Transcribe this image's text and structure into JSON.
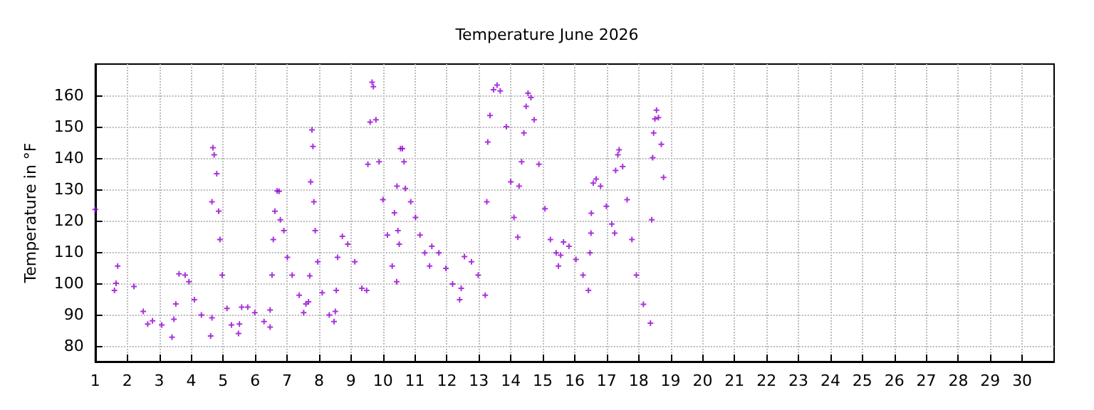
{
  "chart_data": {
    "type": "scatter",
    "title": "Temperature June 2026",
    "ylabel": "Temperature in °F",
    "xlim": [
      1,
      31
    ],
    "xticks": [
      1,
      2,
      3,
      4,
      5,
      6,
      7,
      8,
      9,
      10,
      11,
      12,
      13,
      14,
      15,
      16,
      17,
      18,
      19,
      20,
      21,
      22,
      23,
      24,
      25,
      26,
      27,
      28,
      29,
      30
    ],
    "ylim": [
      75,
      170
    ],
    "yticks": [
      80,
      90,
      100,
      110,
      120,
      130,
      140,
      150,
      160
    ],
    "grid": true,
    "marker": "cross",
    "series": [
      {
        "color": "#9400d3",
        "x": [
          1.0,
          1.6,
          1.65,
          1.7,
          2.21,
          2.5,
          2.64,
          2.79,
          3.08,
          3.4,
          3.46,
          3.52,
          3.62,
          3.81,
          3.93,
          4.1,
          4.32,
          4.61,
          4.65,
          4.65,
          4.68,
          4.72,
          4.8,
          4.86,
          4.9,
          4.97,
          5.12,
          5.26,
          5.48,
          5.51,
          5.58,
          5.77,
          5.99,
          6.28,
          6.47,
          6.47,
          6.53,
          6.57,
          6.62,
          6.69,
          6.75,
          6.79,
          6.9,
          7.01,
          7.16,
          7.38,
          7.52,
          7.59,
          7.67,
          7.71,
          7.74,
          7.78,
          7.81,
          7.84,
          7.88,
          7.96,
          8.1,
          8.32,
          8.47,
          8.51,
          8.54,
          8.58,
          8.73,
          8.9,
          9.12,
          9.34,
          9.49,
          9.53,
          9.6,
          9.66,
          9.7,
          9.78,
          9.88,
          10.0,
          10.14,
          10.29,
          10.36,
          10.43,
          10.44,
          10.47,
          10.51,
          10.55,
          10.61,
          10.66,
          10.7,
          10.87,
          11.02,
          11.16,
          11.31,
          11.46,
          11.53,
          11.75,
          11.97,
          12.18,
          12.4,
          12.45,
          12.55,
          12.77,
          12.98,
          13.2,
          13.25,
          13.28,
          13.35,
          13.46,
          13.57,
          13.67,
          13.86,
          14.0,
          14.1,
          14.22,
          14.26,
          14.34,
          14.41,
          14.48,
          14.54,
          14.63,
          14.73,
          14.88,
          15.07,
          15.24,
          15.42,
          15.49,
          15.56,
          15.65,
          15.82,
          16.04,
          16.26,
          16.43,
          16.48,
          16.51,
          16.52,
          16.58,
          16.67,
          16.81,
          16.99,
          17.16,
          17.25,
          17.28,
          17.35,
          17.39,
          17.5,
          17.64,
          17.79,
          17.93,
          18.15,
          18.37,
          18.41,
          18.44,
          18.47,
          18.51,
          18.56,
          18.62,
          18.71,
          18.78
        ],
        "values": [
          123.6,
          97.7,
          100,
          105.5,
          99,
          91,
          87,
          88,
          86.7,
          82.8,
          88.5,
          93.4,
          103,
          102.6,
          100.5,
          94.8,
          89.9,
          83.2,
          89,
          126,
          143.3,
          141,
          135,
          123,
          114,
          102.6,
          92,
          86.7,
          84,
          87,
          92.4,
          92.4,
          90.6,
          87.8,
          86,
          91.5,
          102.6,
          114,
          123,
          129.5,
          129.4,
          120.3,
          116.8,
          108.3,
          102.6,
          96.2,
          90.6,
          93.4,
          94.1,
          102.4,
          132.4,
          149,
          143.7,
          126,
          116.8,
          106.9,
          97,
          89.9,
          87.8,
          91,
          97.7,
          108.3,
          115,
          112.5,
          106.9,
          98.4,
          97.7,
          138,
          151.5,
          164.2,
          162.8,
          152.2,
          138.8,
          126.7,
          115.4,
          105.5,
          122.5,
          100.5,
          131,
          116.8,
          112.5,
          143,
          143,
          138.8,
          130.3,
          126,
          121,
          115.4,
          109.7,
          105.5,
          111.8,
          109.7,
          104.8,
          99.8,
          94.8,
          98.4,
          108.5,
          106.9,
          102.6,
          96.2,
          126,
          145.1,
          153.6,
          161.8,
          163.3,
          161.4,
          150,
          132.4,
          121,
          114.7,
          131,
          138.8,
          148,
          156.5,
          160.7,
          159.3,
          152.2,
          138,
          123.8,
          114,
          109.7,
          105.5,
          109,
          113.2,
          111.8,
          107.6,
          102.6,
          97.7,
          109.7,
          116,
          122.4,
          132,
          133.3,
          131,
          124.6,
          118.9,
          116,
          136,
          141,
          142.6,
          137.3,
          126.7,
          114,
          102.6,
          93.3,
          87.3,
          120.3,
          140.1,
          148,
          152.5,
          155.3,
          152.9,
          144.4,
          133.8
        ]
      }
    ]
  }
}
